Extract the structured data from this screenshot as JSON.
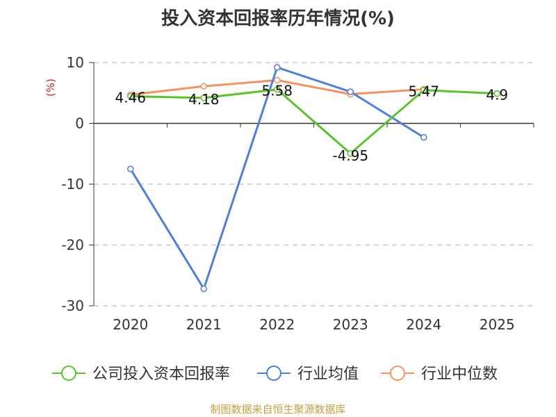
{
  "chart_data": {
    "type": "line",
    "title": "投入资本回报率历年情况(%)",
    "ylabel": "(%)",
    "xlabel": "",
    "ylim": [
      -30,
      10
    ],
    "yticks": [
      10,
      0,
      -10,
      -20,
      -30
    ],
    "categories": [
      "2020",
      "2021",
      "2022",
      "2023",
      "2024",
      "2025"
    ],
    "grid": true,
    "legend_position": "bottom",
    "series": [
      {
        "name": "公司投入资本回报率",
        "color": "#5bc22e",
        "values": [
          4.46,
          4.18,
          5.58,
          -4.95,
          5.47,
          4.9
        ],
        "labels": [
          "4.46",
          "4.18",
          "5.58",
          "-4.95",
          "5.47",
          "4.9"
        ]
      },
      {
        "name": "行业均值",
        "color": "#4e7fd8",
        "values": [
          -7.5,
          -27.2,
          9.2,
          5.2,
          -2.3,
          null
        ]
      },
      {
        "name": "行业中位数",
        "color": "#f59262",
        "values": [
          4.7,
          6.1,
          7.1,
          4.8,
          5.6,
          null
        ]
      }
    ]
  },
  "source": "制图数据来自恒生聚源数据库"
}
